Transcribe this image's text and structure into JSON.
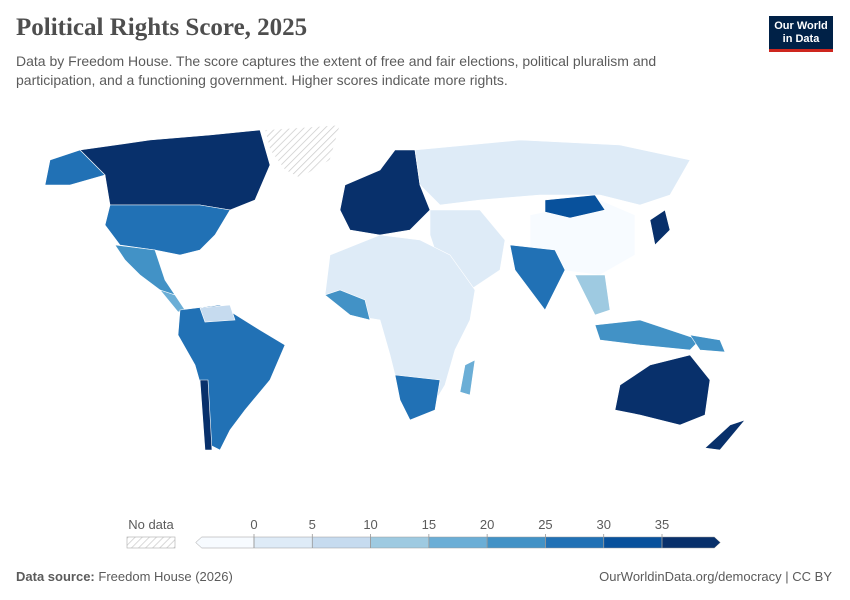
{
  "header": {
    "title": "Political Rights Score, 2025",
    "subtitle": [
      "Data by Freedom House. The score captures the extent of free and fair elections, political pluralism and",
      "participation, and a functioning government. Higher scores indicate more rights."
    ],
    "logo": [
      "Our World",
      "in Data"
    ]
  },
  "legend": {
    "no_data": "No data",
    "ticks": [
      0,
      5,
      10,
      15,
      20,
      25,
      30,
      35
    ],
    "colors": [
      "#f7fbff",
      "#deebf7",
      "#c6dbef",
      "#9ecae1",
      "#6baed6",
      "#4292c6",
      "#2171b5",
      "#08519c",
      "#08306b"
    ]
  },
  "footer": {
    "source_label": "Data source:",
    "source": "Freedom House (2026)",
    "url": "OurWorldinData.org/democracy | CC BY"
  }
}
